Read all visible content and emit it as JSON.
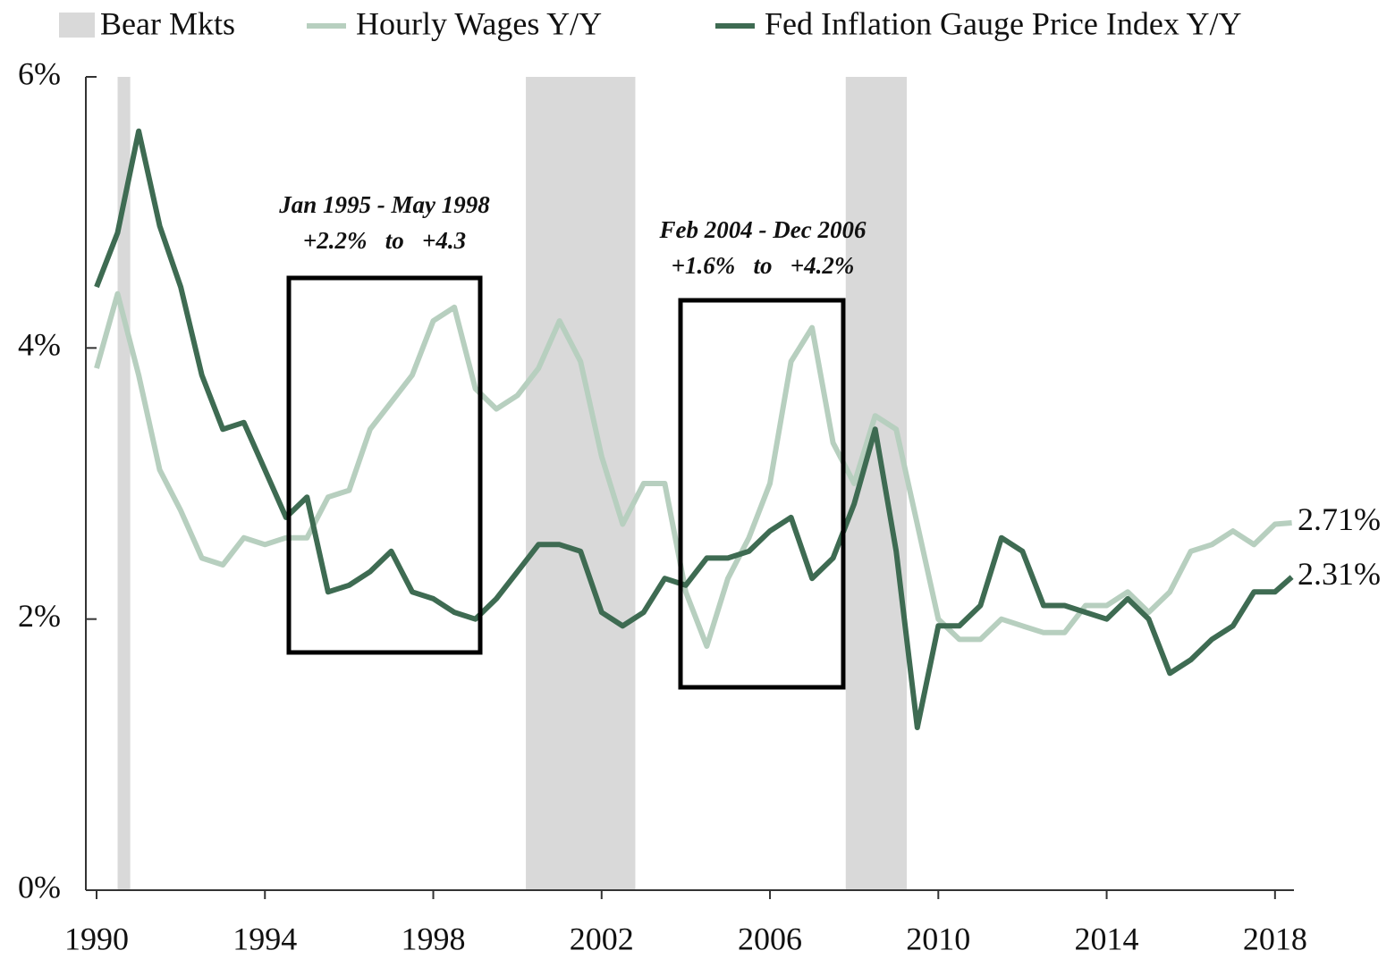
{
  "chart_data": {
    "type": "line",
    "bear_markets": {
      "name": "Bear Mkts",
      "color": "#d9d9d9",
      "spans": [
        [
          1990.5,
          1990.8
        ],
        [
          2000.2,
          2002.8
        ],
        [
          2007.8,
          2009.25
        ]
      ]
    },
    "x": [
      1990,
      1990.5,
      1991,
      1991.5,
      1992,
      1992.5,
      1993,
      1993.5,
      1994,
      1994.5,
      1995,
      1995.5,
      1996,
      1996.5,
      1997,
      1997.5,
      1998,
      1998.5,
      1999,
      1999.5,
      2000,
      2000.5,
      2001,
      2001.5,
      2002,
      2002.5,
      2003,
      2003.5,
      2004,
      2004.5,
      2005,
      2005.5,
      2006,
      2006.5,
      2007,
      2007.5,
      2008,
      2008.5,
      2009,
      2009.5,
      2010,
      2010.5,
      2011,
      2011.5,
      2012,
      2012.5,
      2013,
      2013.5,
      2014,
      2014.5,
      2015,
      2015.5,
      2016,
      2016.5,
      2017,
      2017.5,
      2018,
      2018.4
    ],
    "series": [
      {
        "name": "Hourly Wages Y/Y",
        "color": "#b7cfbf",
        "values": [
          3.85,
          4.4,
          3.8,
          3.1,
          2.8,
          2.45,
          2.4,
          2.6,
          2.55,
          2.6,
          2.6,
          2.9,
          2.95,
          3.4,
          3.6,
          3.8,
          4.2,
          4.3,
          3.7,
          3.55,
          3.65,
          3.85,
          4.2,
          3.9,
          3.2,
          2.7,
          3.0,
          3.0,
          2.2,
          1.8,
          2.3,
          2.6,
          3.0,
          3.9,
          4.15,
          3.3,
          3.0,
          3.5,
          3.4,
          2.7,
          2.0,
          1.85,
          1.85,
          2.0,
          1.95,
          1.9,
          1.9,
          2.1,
          2.1,
          2.2,
          2.05,
          2.2,
          2.5,
          2.55,
          2.65,
          2.55,
          2.7,
          2.71
        ],
        "end_label": "2.71%"
      },
      {
        "name": "Fed Inflation Gauge Price Index Y/Y",
        "color": "#3e6b52",
        "values": [
          4.45,
          4.85,
          5.6,
          4.9,
          4.45,
          3.8,
          3.4,
          3.45,
          3.1,
          2.75,
          2.9,
          2.2,
          2.25,
          2.35,
          2.5,
          2.2,
          2.15,
          2.05,
          2.0,
          2.15,
          2.35,
          2.55,
          2.55,
          2.5,
          2.05,
          1.95,
          2.05,
          2.3,
          2.25,
          2.45,
          2.45,
          2.5,
          2.65,
          2.75,
          2.3,
          2.45,
          2.85,
          3.4,
          2.5,
          1.2,
          1.95,
          1.95,
          2.1,
          2.6,
          2.5,
          2.1,
          2.1,
          2.05,
          2.0,
          2.15,
          2.0,
          1.6,
          1.7,
          1.85,
          1.95,
          2.2,
          2.2,
          2.31
        ],
        "end_label": "2.31%"
      }
    ],
    "xlim": [
      1990,
      2018.45
    ],
    "xticks": [
      1990,
      1994,
      1998,
      2002,
      2006,
      2010,
      2014,
      2018
    ],
    "ylim": [
      0,
      6
    ],
    "yticks": [
      {
        "value": 0,
        "label": "0%"
      },
      {
        "value": 2,
        "label": "2%"
      },
      {
        "value": 4,
        "label": "4%"
      },
      {
        "value": 6,
        "label": "6%"
      }
    ],
    "annotations": [
      {
        "lines": [
          "Jan 1995 - May 1998",
          "+2.2%   to   +4.3"
        ]
      },
      {
        "lines": [
          "Feb 2004 - Dec 2006",
          "+1.6%   to   +4.2%"
        ]
      }
    ],
    "legend": "top"
  }
}
